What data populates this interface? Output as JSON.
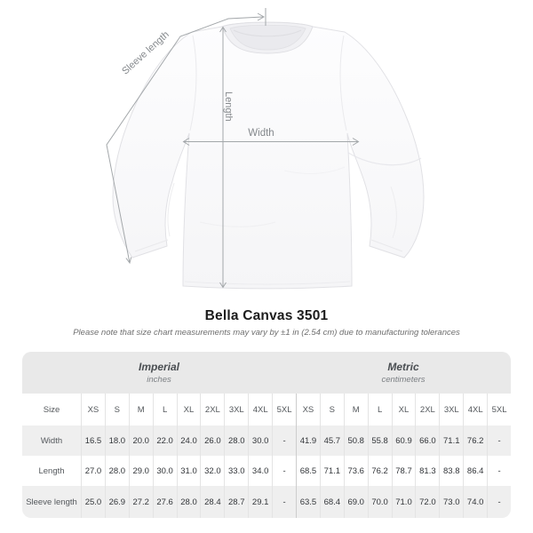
{
  "title": "Bella Canvas 3501",
  "note": "Please note that size chart measurements may vary by ±1 in (2.54 cm) due to manufacturing tolerances",
  "diagram": {
    "labels": {
      "sleeve": "Sleeve length",
      "length": "Length",
      "width": "Width"
    }
  },
  "table": {
    "size_header": "Size",
    "groups": [
      {
        "name": "Imperial",
        "unit": "inches"
      },
      {
        "name": "Metric",
        "unit": "centimeters"
      }
    ],
    "sizes": [
      "XS",
      "S",
      "M",
      "L",
      "XL",
      "2XL",
      "3XL",
      "4XL",
      "5XL"
    ],
    "rows": [
      {
        "label": "Width",
        "imperial": [
          "16.5",
          "18.0",
          "20.0",
          "22.0",
          "24.0",
          "26.0",
          "28.0",
          "30.0",
          "-"
        ],
        "metric": [
          "41.9",
          "45.7",
          "50.8",
          "55.8",
          "60.9",
          "66.0",
          "71.1",
          "76.2",
          "-"
        ]
      },
      {
        "label": "Length",
        "imperial": [
          "27.0",
          "28.0",
          "29.0",
          "30.0",
          "31.0",
          "32.0",
          "33.0",
          "34.0",
          "-"
        ],
        "metric": [
          "68.5",
          "71.1",
          "73.6",
          "76.2",
          "78.7",
          "81.3",
          "83.8",
          "86.4",
          "-"
        ]
      },
      {
        "label": "Sleeve length",
        "imperial": [
          "25.0",
          "26.9",
          "27.2",
          "27.6",
          "28.0",
          "28.4",
          "28.7",
          "29.1",
          "-"
        ],
        "metric": [
          "63.5",
          "68.4",
          "69.0",
          "70.0",
          "71.0",
          "72.0",
          "73.0",
          "74.0",
          "-"
        ]
      }
    ]
  },
  "chart_data": {
    "type": "table",
    "title": "Bella Canvas 3501 size chart",
    "units": {
      "imperial": "inches",
      "metric": "centimeters"
    },
    "sizes": [
      "XS",
      "S",
      "M",
      "L",
      "XL",
      "2XL",
      "3XL",
      "4XL",
      "5XL"
    ],
    "measurements": [
      {
        "label": "Width",
        "imperial_in": [
          16.5,
          18.0,
          20.0,
          22.0,
          24.0,
          26.0,
          28.0,
          30.0,
          null
        ],
        "metric_cm": [
          41.9,
          45.7,
          50.8,
          55.8,
          60.9,
          66.0,
          71.1,
          76.2,
          null
        ]
      },
      {
        "label": "Length",
        "imperial_in": [
          27.0,
          28.0,
          29.0,
          30.0,
          31.0,
          32.0,
          33.0,
          34.0,
          null
        ],
        "metric_cm": [
          68.5,
          71.1,
          73.6,
          76.2,
          78.7,
          81.3,
          83.8,
          86.4,
          null
        ]
      },
      {
        "label": "Sleeve length",
        "imperial_in": [
          25.0,
          26.9,
          27.2,
          27.6,
          28.0,
          28.4,
          28.7,
          29.1,
          null
        ],
        "metric_cm": [
          63.5,
          68.4,
          69.0,
          70.0,
          71.0,
          72.0,
          73.0,
          74.0,
          null
        ]
      }
    ],
    "note": "Measurements may vary by ±1 in (2.54 cm)"
  },
  "colors": {
    "band_background": "#e9e9e9",
    "stripe_background": "#efefef",
    "measure_line": "#a3a7aa",
    "measure_label": "#84888c"
  }
}
